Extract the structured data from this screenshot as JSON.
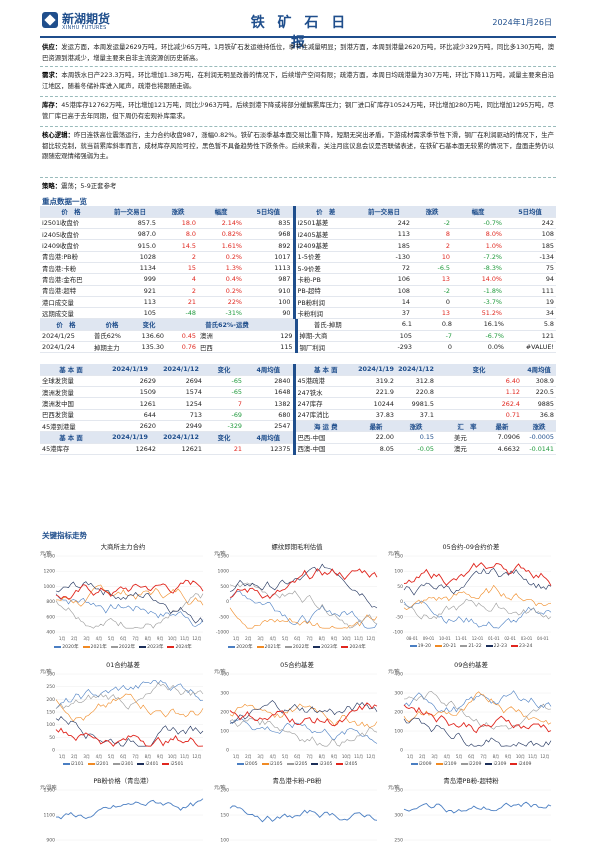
{
  "header": {
    "brand_cn": "新湖期货",
    "brand_en": "XINHU FUTURES",
    "title": "铁 矿 石 日 报",
    "date": "2024年1月26日"
  },
  "summary": [
    {
      "label": "供应：",
      "text": "发运方面，本周发运量2629万吨，环比减少65万吨，1月铁矿石发运维持低位，季节性减量明显；到港方面，本周到港量2620万吨，环比减少329万吨，同比多130万吨，澳巴资源到港减少，增量主要来自非主流资源创历史新高。"
    },
    {
      "label": "需求：",
      "text": "本周铁水日产223.3万吨，环比增加1.38万吨，在利润无明显改善的情况下，后续增产空间有限；疏港方面，本周日均疏港量为307万吨，环比下降11万吨，减量主要来自沿江地区，随着冬储补库进入尾声，疏港也将跟随走弱。"
    },
    {
      "label": "库存：",
      "text": "45港库存12762万吨，环比增加121万吨，同比少963万吨，后续到港下降或将部分缓解累库压力；钢厂进口矿库存10524万吨，环比增加280万吨，同比增加1295万吨，尽管厂库已高于去年同期，但下周仍有宏观补库需求。"
    },
    {
      "label": "核心逻辑：",
      "text": "昨日连铁高位震荡运行，主力合约收盘987，涨幅0.82%。铁矿石淡季基本面交易比重下降，短期无突出矛盾，下游成材需求季节性下滑，钢厂在利润驱动的情况下，生产都比较克制，就当前累库斜率而言，成材库存风险可控，黑色暂不具备趋势性下跌条件。后续来看，关注月底议息会议是否联储表述，在铁矿石基本面无较累的情况下，盘面走势仍以跟随宏观情绪强弱为主。"
    }
  ],
  "strategy": {
    "label": "策略：",
    "text": "震荡；5-9正套参考"
  },
  "key_data_title": "重点数据一览",
  "table1": {
    "headers": [
      "价　格",
      "前一交易日",
      "涨跌",
      "幅度",
      "5日均值",
      "价　差",
      "前一交易日",
      "涨跌",
      "幅度",
      "5日均值"
    ],
    "rows": [
      [
        "i2501收盘价",
        "857.5",
        "18.0",
        "2.14%",
        "835",
        "i2501基差",
        "242",
        "-2",
        "-0.7%",
        "242"
      ],
      [
        "i2405收盘价",
        "987.0",
        "8.0",
        "0.82%",
        "968",
        "i2405基差",
        "113",
        "8",
        "8.0%",
        "108"
      ],
      [
        "i2409收盘价",
        "915.0",
        "14.5",
        "1.61%",
        "892",
        "i2409基差",
        "185",
        "2",
        "1.0%",
        "185"
      ],
      [
        "青岛港:PB粉",
        "1028",
        "2",
        "0.2%",
        "1017",
        "1-5价差",
        "-130",
        "10",
        "-7.2%",
        "-134"
      ],
      [
        "青岛港:卡粉",
        "1134",
        "15",
        "1.3%",
        "1113",
        "5-9价差",
        "72",
        "-6.5",
        "-8.3%",
        "75"
      ],
      [
        "青岛港:金布巴",
        "999",
        "4",
        "0.4%",
        "987",
        "卡粉-PB",
        "106",
        "13",
        "14.0%",
        "94"
      ],
      [
        "青岛港:超特",
        "921",
        "2",
        "0.2%",
        "910",
        "PB-超特",
        "108",
        "-2",
        "-1.8%",
        "111"
      ],
      [
        "港口成交量",
        "113",
        "21",
        "22%",
        "100",
        "PB粉利润",
        "14",
        "0",
        "-3.7%",
        "19"
      ],
      [
        "远期成交量",
        "105",
        "-48",
        "-31%",
        "90",
        "卡粉利润",
        "37",
        "13",
        "51.2%",
        "34"
      ]
    ]
  },
  "table2": {
    "headers": [
      "价　格",
      "价格",
      "变化",
      "",
      "普氏62%-运费",
      "",
      "普氏-掉期",
      "6.1",
      "0.8",
      "16.1%",
      "5.8"
    ],
    "rows": [
      [
        "2024/1/25",
        "普氏62%",
        "136.60",
        "0.45",
        "澳洲",
        "129",
        "掉期-大商",
        "105",
        "-7",
        "-6.7%",
        "121"
      ],
      [
        "2024/1/24",
        "掉期主力",
        "135.30",
        "0.76",
        "巴西",
        "115",
        "钢厂利润",
        "-293",
        "0",
        "0.0%",
        "#VALUE!"
      ]
    ]
  },
  "table3": {
    "headers": [
      "基 本 面",
      "2024/1/19",
      "2024/1/12",
      "变化",
      "4周均值",
      "基 本 面",
      "2024/1/19",
      "2024/1/12",
      "变化",
      "4周均值"
    ],
    "rows": [
      [
        "全球发货量",
        "2629",
        "2694",
        "-65",
        "2840",
        "45港疏港",
        "319.2",
        "312.8",
        "6.40",
        "308.9"
      ],
      [
        "澳洲发货量",
        "1509",
        "1574",
        "-65",
        "1648",
        "247铁水",
        "221.9",
        "220.8",
        "1.12",
        "220.5"
      ],
      [
        "澳洲发中国",
        "1261",
        "1254",
        "7",
        "1382",
        "247库存",
        "10244",
        "9981.5",
        "262.4",
        "9885"
      ],
      [
        "巴西发货量",
        "644",
        "713",
        "-69",
        "680",
        "247库消比",
        "37.83",
        "37.1",
        "0.71",
        "36.8"
      ],
      [
        "45港到港量",
        "2620",
        "2949",
        "-329",
        "2547"
      ]
    ],
    "row5_right": [
      "海 运 费",
      "最新",
      "涨跌",
      "",
      "汇　率",
      "最新",
      "涨跌"
    ],
    "row6_left": [
      "基 本 面",
      "2024/1/19",
      "2024/1/12",
      "变化",
      "4周均值"
    ],
    "row6_right": [
      "巴西-中国",
      "22.00",
      "0.15",
      "",
      "美元",
      "7.0906",
      "-0.0005"
    ],
    "row7_left": [
      "45港库存",
      "12642",
      "12621",
      "21",
      "12375"
    ],
    "row7_right": [
      "西澳-中国",
      "8.05",
      "-0.05",
      "",
      "澳元",
      "4.6632",
      "-0.0141"
    ]
  },
  "charts_title": "关键指标走势",
  "charts": [
    {
      "title": "大商所主力合约",
      "unit": "元/吨",
      "yticks": [
        "1400",
        "1200",
        "1000",
        "800",
        "600",
        "400"
      ],
      "xticks": [
        "1月",
        "2月",
        "3月",
        "4月",
        "5月",
        "6月",
        "7月",
        "8月",
        "9月",
        "10月",
        "11月",
        "12月"
      ],
      "legend": [
        "2020年",
        "2021年",
        "2022年",
        "2023年",
        "2024年"
      ]
    },
    {
      "title": "螺纹即期毛利估值",
      "unit": "元/吨",
      "yticks": [
        "1500",
        "1000",
        "500",
        "0",
        "-500",
        "-1000"
      ],
      "xticks": [
        "1月",
        "2月",
        "3月",
        "4月",
        "5月",
        "6月",
        "7月",
        "8月",
        "9月",
        "10月",
        "11月",
        "12月"
      ],
      "legend": [
        "2020年",
        "2021年",
        "2022年",
        "2023年",
        "2024年"
      ]
    },
    {
      "title": "05合约-09合约价差",
      "unit": "元/吨",
      "yticks": [
        "150",
        "100",
        "50",
        "0",
        "-50",
        "-100"
      ],
      "xticks": [
        "08-01",
        "09-01",
        "10-01",
        "11-01",
        "12-01",
        "01-01",
        "02-01",
        "03-01",
        "04-01"
      ],
      "legend": [
        "19-20",
        "20-21",
        "21-22",
        "22-23",
        "23-24"
      ]
    },
    {
      "title": "01合约基差",
      "unit": "元/吨",
      "yticks": [
        "300",
        "250",
        "200",
        "150",
        "100",
        "50",
        "0"
      ],
      "xticks": [
        "1月",
        "2月",
        "3月",
        "4月",
        "5月",
        "6月",
        "7月",
        "8月",
        "9月",
        "10月",
        "11月",
        "12月"
      ],
      "legend": [
        "i2101",
        "i2201",
        "i2301",
        "i2401",
        "i2501"
      ]
    },
    {
      "title": "05合约基差",
      "unit": "元/吨",
      "yticks": [
        "400",
        "300",
        "200",
        "100",
        "0"
      ],
      "xticks": [
        "1月",
        "2月",
        "3月",
        "4月",
        "5月",
        "6月",
        "7月",
        "8月",
        "9月",
        "10月",
        "11月",
        "12月"
      ],
      "legend": [
        "i2005",
        "i2105",
        "i2205",
        "i2305",
        "i2405"
      ]
    },
    {
      "title": "09合约基差",
      "unit": "元/吨",
      "yticks": [
        "400",
        "300",
        "200",
        "100",
        "0"
      ],
      "xticks": [
        "1月",
        "2月",
        "3月",
        "4月",
        "5月",
        "6月",
        "7月",
        "8月",
        "9月",
        "10月",
        "11月",
        "12月"
      ],
      "legend": [
        "i2009",
        "i2109",
        "i2209",
        "i2309",
        "i2409"
      ]
    },
    {
      "title": "PB粉价格（青岛港）",
      "unit": "元/湿吨",
      "yticks": [
        "1300",
        "1100",
        "900"
      ],
      "xticks": [],
      "legend": []
    },
    {
      "title": "青岛港卡粉-PB粉",
      "unit": "元/吨",
      "yticks": [
        "200",
        "150",
        "100"
      ],
      "xticks": [],
      "legend": []
    },
    {
      "title": "青岛港PB粉-超特粉",
      "unit": "元/吨",
      "yticks": [
        "350",
        "300",
        "250"
      ],
      "xticks": [],
      "legend": []
    }
  ],
  "colors": {
    "brand": "#1f4e8c",
    "up": "#e0261e",
    "down": "#1f9a3c",
    "s2020": "#4a7ec2",
    "s2021": "#f08a24",
    "s2022": "#9a9a9a",
    "s2023": "#1c2f5a",
    "s2024": "#e0261e"
  }
}
